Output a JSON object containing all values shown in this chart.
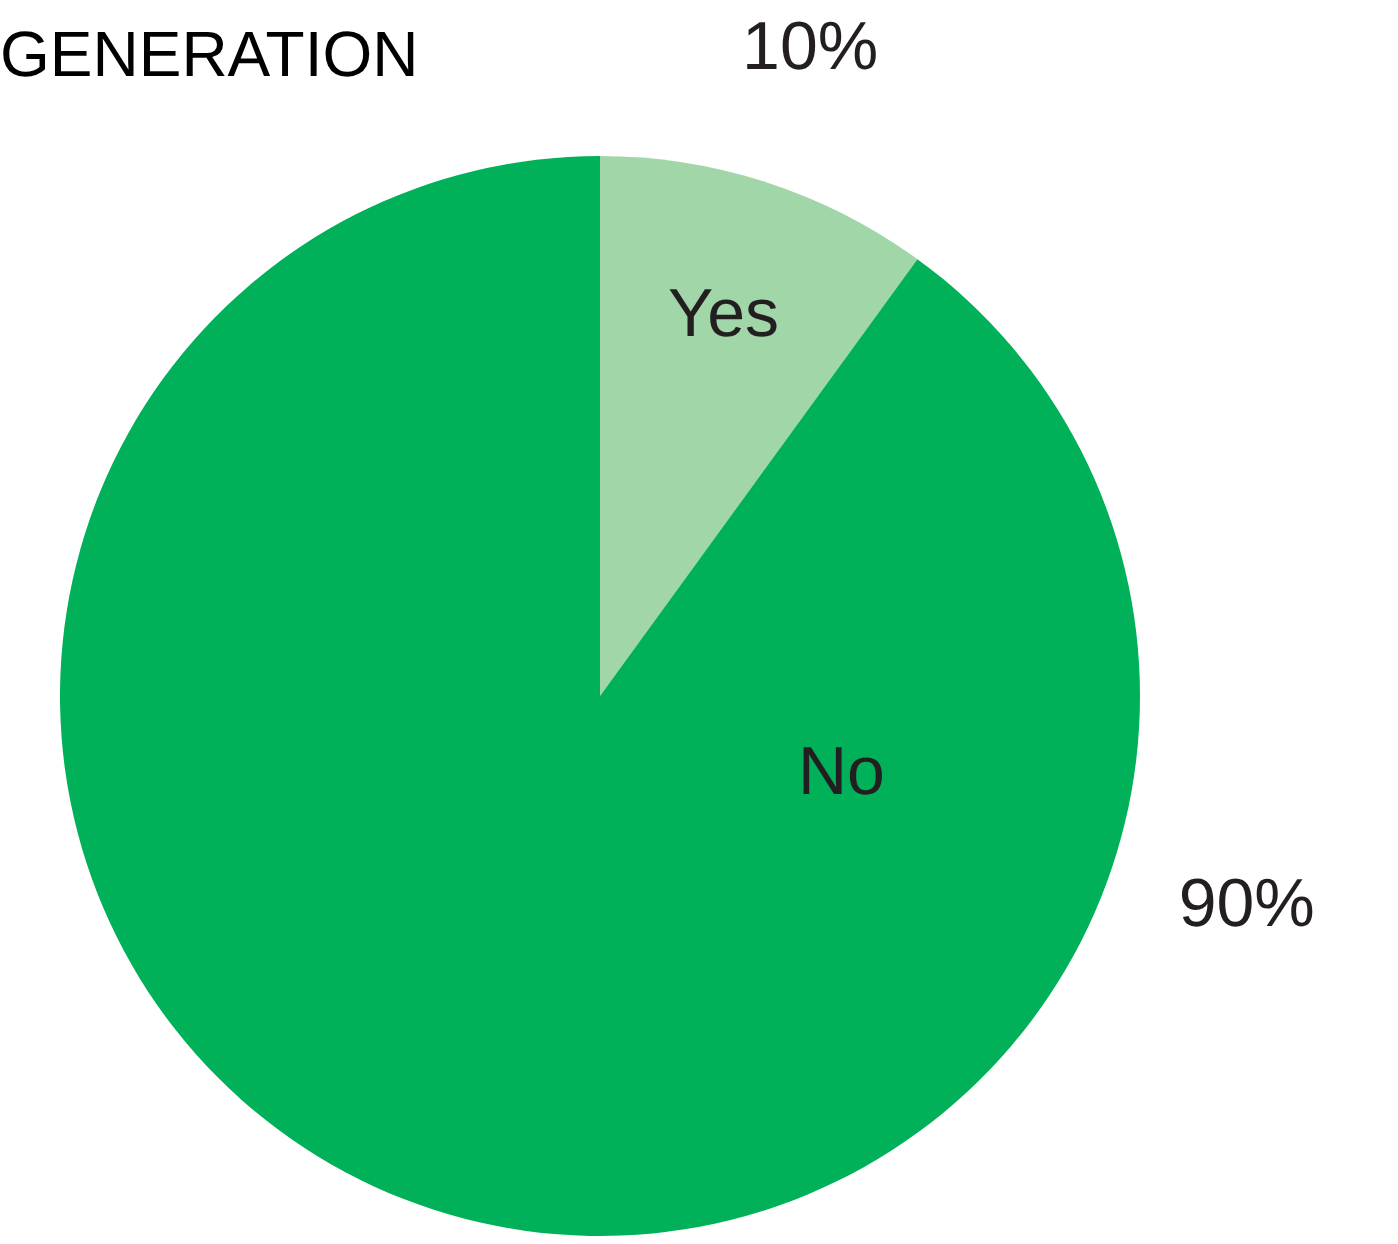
{
  "chart_data": {
    "type": "pie",
    "title": "GENERATION",
    "categories": [
      "Yes",
      "No"
    ],
    "values": [
      10,
      90
    ],
    "colors": [
      "#a1d6a9",
      "#00b159"
    ],
    "value_labels": [
      "10%",
      "90%"
    ]
  }
}
